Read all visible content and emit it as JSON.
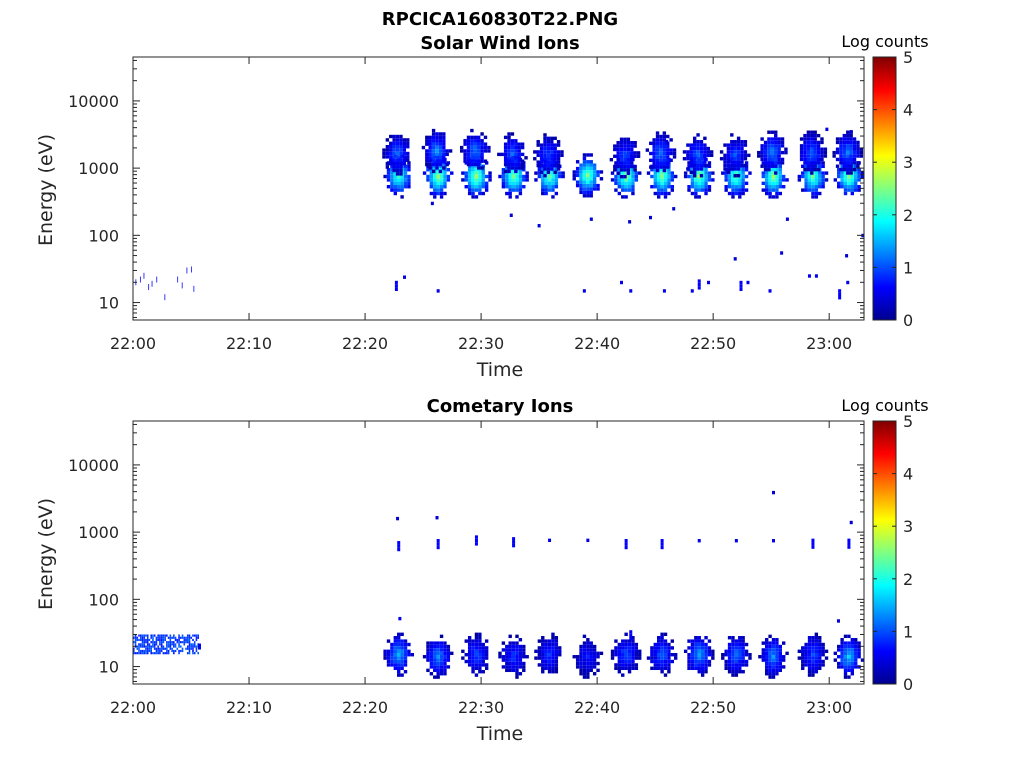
{
  "figure_title": "RPCICA160830T22.PNG",
  "colors": {
    "axis": "#262626",
    "background": "#ffffff",
    "colormap": [
      "#00008f",
      "#0000ff",
      "#0080ff",
      "#00ffff",
      "#80ff80",
      "#ffff00",
      "#ff8000",
      "#ff0000",
      "#800000"
    ]
  },
  "chart_data": [
    {
      "type": "heatmap",
      "title": "Solar Wind Ions",
      "xlabel": "Time",
      "ylabel": "Energy (eV)",
      "x_ticks": [
        "22:00",
        "22:10",
        "22:20",
        "22:30",
        "22:40",
        "22:50",
        "23:00"
      ],
      "x_range_minutes": [
        0,
        63
      ],
      "y_scale": "log",
      "y_ticks": [
        "10",
        "100",
        "1000",
        "10000"
      ],
      "y_range": [
        5.5,
        45000
      ],
      "colorbar": {
        "title": "Log counts",
        "range": [
          0,
          5
        ],
        "ticks": [
          "0",
          "1",
          "2",
          "3",
          "4",
          "5"
        ]
      },
      "blobs": [
        {
          "t": 22.9,
          "e": 750,
          "c": 2.2
        },
        {
          "t": 22.8,
          "e": 1650,
          "c": 1.1
        },
        {
          "t": 26.3,
          "e": 750,
          "c": 2.6
        },
        {
          "t": 26.2,
          "e": 1800,
          "c": 1.3
        },
        {
          "t": 29.6,
          "e": 750,
          "c": 2.7
        },
        {
          "t": 29.5,
          "e": 1800,
          "c": 1.2
        },
        {
          "t": 32.8,
          "e": 750,
          "c": 2.6
        },
        {
          "t": 32.7,
          "e": 1600,
          "c": 1.1
        },
        {
          "t": 35.9,
          "e": 750,
          "c": 2.4
        },
        {
          "t": 35.8,
          "e": 1550,
          "c": 1.0
        },
        {
          "t": 39.2,
          "e": 780,
          "c": 2.5
        },
        {
          "t": 42.5,
          "e": 750,
          "c": 2.6
        },
        {
          "t": 42.4,
          "e": 1500,
          "c": 1.0
        },
        {
          "t": 45.6,
          "e": 750,
          "c": 2.6
        },
        {
          "t": 45.5,
          "e": 1650,
          "c": 1.2
        },
        {
          "t": 48.8,
          "e": 750,
          "c": 2.6
        },
        {
          "t": 48.7,
          "e": 1550,
          "c": 1.1
        },
        {
          "t": 52.0,
          "e": 750,
          "c": 2.4
        },
        {
          "t": 51.9,
          "e": 1550,
          "c": 1.0
        },
        {
          "t": 55.2,
          "e": 750,
          "c": 2.6
        },
        {
          "t": 55.1,
          "e": 1700,
          "c": 1.3
        },
        {
          "t": 58.6,
          "e": 750,
          "c": 2.4
        },
        {
          "t": 58.5,
          "e": 1700,
          "c": 1.1
        },
        {
          "t": 61.7,
          "e": 750,
          "c": 2.6
        },
        {
          "t": 61.6,
          "e": 1700,
          "c": 1.2
        }
      ],
      "sparse": [
        {
          "t": 22.7,
          "e": 20,
          "c": 0.6
        },
        {
          "t": 23.4,
          "e": 24,
          "c": 0.5
        },
        {
          "t": 26.3,
          "e": 15,
          "c": 0.5
        },
        {
          "t": 38.9,
          "e": 15,
          "c": 0.5
        },
        {
          "t": 42.1,
          "e": 20,
          "c": 0.5
        },
        {
          "t": 42.9,
          "e": 15,
          "c": 0.5
        },
        {
          "t": 45.8,
          "e": 15,
          "c": 0.5
        },
        {
          "t": 48.2,
          "e": 15,
          "c": 0.5
        },
        {
          "t": 48.8,
          "e": 21,
          "c": 0.6
        },
        {
          "t": 49.6,
          "e": 20,
          "c": 0.5
        },
        {
          "t": 52.4,
          "e": 20,
          "c": 0.6
        },
        {
          "t": 53.0,
          "e": 20,
          "c": 0.5
        },
        {
          "t": 54.9,
          "e": 15,
          "c": 0.5
        },
        {
          "t": 58.3,
          "e": 25,
          "c": 0.5
        },
        {
          "t": 58.9,
          "e": 25,
          "c": 0.5
        },
        {
          "t": 60.9,
          "e": 15,
          "c": 0.6
        },
        {
          "t": 61.6,
          "e": 20,
          "c": 0.5
        },
        {
          "t": 25.8,
          "e": 300,
          "c": 0.4
        },
        {
          "t": 32.6,
          "e": 200,
          "c": 0.4
        },
        {
          "t": 35.0,
          "e": 140,
          "c": 0.4
        },
        {
          "t": 39.5,
          "e": 175,
          "c": 0.4
        },
        {
          "t": 42.8,
          "e": 160,
          "c": 0.4
        },
        {
          "t": 44.6,
          "e": 185,
          "c": 0.4
        },
        {
          "t": 46.6,
          "e": 250,
          "c": 0.4
        },
        {
          "t": 56.4,
          "e": 175,
          "c": 0.4
        },
        {
          "t": 51.9,
          "e": 45,
          "c": 0.4
        },
        {
          "t": 55.9,
          "e": 55,
          "c": 0.4
        },
        {
          "t": 61.5,
          "e": 50,
          "c": 0.4
        },
        {
          "t": 62.9,
          "e": 100,
          "c": 0.4
        },
        {
          "t": 59.8,
          "e": 3800,
          "c": 0.4
        },
        {
          "t": 61.9,
          "e": 3500,
          "c": 0.4
        },
        {
          "t": 46.0,
          "e": 2500,
          "c": 0.4
        }
      ],
      "low_scatter": [
        {
          "t": 0.2,
          "e": 20
        },
        {
          "t": 0.6,
          "e": 22
        },
        {
          "t": 0.9,
          "e": 25
        },
        {
          "t": 1.3,
          "e": 17
        },
        {
          "t": 1.6,
          "e": 19
        },
        {
          "t": 2.0,
          "e": 22
        },
        {
          "t": 2.7,
          "e": 12
        },
        {
          "t": 3.8,
          "e": 22
        },
        {
          "t": 4.2,
          "e": 18
        },
        {
          "t": 4.6,
          "e": 30
        },
        {
          "t": 5.0,
          "e": 31
        },
        {
          "t": 5.2,
          "e": 16
        }
      ]
    },
    {
      "type": "heatmap",
      "title": "Cometary Ions",
      "xlabel": "Time",
      "ylabel": "Energy (eV)",
      "x_ticks": [
        "22:00",
        "22:10",
        "22:20",
        "22:30",
        "22:40",
        "22:50",
        "23:00"
      ],
      "x_range_minutes": [
        0,
        63
      ],
      "y_scale": "log",
      "y_ticks": [
        "10",
        "100",
        "1000",
        "10000"
      ],
      "y_range": [
        5.5,
        45000
      ],
      "colorbar": {
        "title": "Log counts",
        "range": [
          0,
          5
        ],
        "ticks": [
          "0",
          "1",
          "2",
          "3",
          "4",
          "5"
        ]
      },
      "blobs": [
        {
          "t": 22.9,
          "e": 15,
          "c": 1.5
        },
        {
          "t": 26.3,
          "e": 14,
          "c": 1.3
        },
        {
          "t": 29.6,
          "e": 15,
          "c": 1.0
        },
        {
          "t": 32.8,
          "e": 14,
          "c": 0.9
        },
        {
          "t": 35.9,
          "e": 15,
          "c": 0.9
        },
        {
          "t": 39.2,
          "e": 14,
          "c": 0.7
        },
        {
          "t": 42.5,
          "e": 15,
          "c": 1.0
        },
        {
          "t": 45.6,
          "e": 15,
          "c": 1.1
        },
        {
          "t": 48.8,
          "e": 15,
          "c": 1.4
        },
        {
          "t": 52.0,
          "e": 15,
          "c": 1.2
        },
        {
          "t": 55.2,
          "e": 14,
          "c": 1.3
        },
        {
          "t": 58.6,
          "e": 15,
          "c": 1.0
        },
        {
          "t": 61.7,
          "e": 14,
          "c": 1.6
        }
      ],
      "sparse": [
        {
          "t": 22.9,
          "e": 700,
          "c": 0.6
        },
        {
          "t": 22.8,
          "e": 1600,
          "c": 0.4
        },
        {
          "t": 26.3,
          "e": 750,
          "c": 0.6
        },
        {
          "t": 26.2,
          "e": 1650,
          "c": 0.4
        },
        {
          "t": 29.6,
          "e": 850,
          "c": 0.6
        },
        {
          "t": 32.8,
          "e": 800,
          "c": 0.6
        },
        {
          "t": 35.9,
          "e": 760,
          "c": 0.5
        },
        {
          "t": 39.2,
          "e": 760,
          "c": 0.5
        },
        {
          "t": 42.5,
          "e": 750,
          "c": 0.6
        },
        {
          "t": 45.6,
          "e": 750,
          "c": 0.6
        },
        {
          "t": 48.8,
          "e": 750,
          "c": 0.5
        },
        {
          "t": 52.0,
          "e": 750,
          "c": 0.5
        },
        {
          "t": 55.2,
          "e": 750,
          "c": 0.5
        },
        {
          "t": 58.6,
          "e": 760,
          "c": 0.6
        },
        {
          "t": 61.7,
          "e": 760,
          "c": 0.6
        },
        {
          "t": 55.2,
          "e": 3900,
          "c": 0.4
        },
        {
          "t": 61.9,
          "e": 1400,
          "c": 0.4
        },
        {
          "t": 23.0,
          "e": 52,
          "c": 0.5
        },
        {
          "t": 60.8,
          "e": 48,
          "c": 0.4
        },
        {
          "t": 42.9,
          "e": 33,
          "c": 0.6
        }
      ],
      "band": {
        "t_start": 0,
        "t_end": 5.6,
        "e_low": 16,
        "e_high": 30,
        "c": 0.9
      }
    }
  ]
}
